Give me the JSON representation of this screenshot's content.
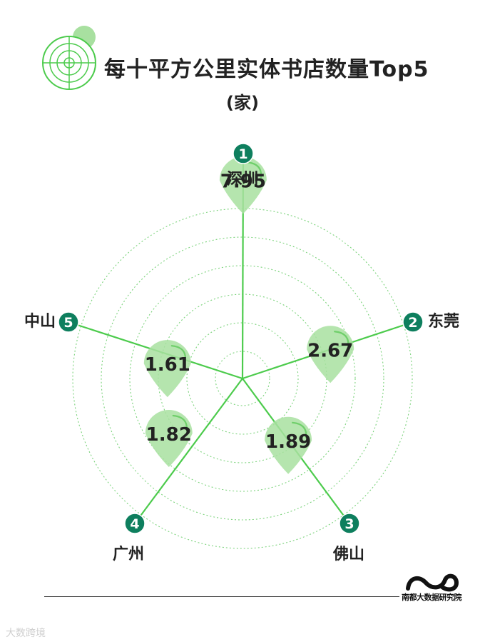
{
  "title": "每十平方公里实体书店数量Top5",
  "subtitle": "(家)",
  "chart_data": {
    "type": "radar",
    "title": "每十平方公里实体书店数量Top5",
    "unit": "(家)",
    "categories": [
      "深圳",
      "东莞",
      "佛山",
      "广州",
      "中山"
    ],
    "ranks": [
      "1",
      "2",
      "3",
      "4",
      "5"
    ],
    "values": [
      7.95,
      2.67,
      1.89,
      1.82,
      1.61
    ],
    "series": [
      {
        "name": "",
        "values": [
          7.95,
          2.67,
          1.89,
          1.82,
          1.61
        ]
      }
    ],
    "grid": true,
    "colors": {
      "axis": "#4ccb4c",
      "badge": "#0e7f5e",
      "marker": "#a8e0a0",
      "grid": "#7cd37c"
    }
  },
  "branding": {
    "publisher": "南都大数据研究院",
    "watermark": "大数跨境"
  }
}
